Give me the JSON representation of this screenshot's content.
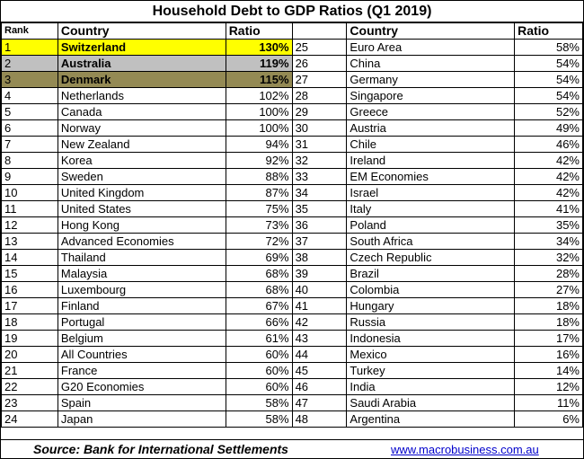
{
  "title": "Household Debt to GDP Ratios (Q1 2019)",
  "headers": {
    "rank": "Rank",
    "country": "Country",
    "ratio": "Ratio"
  },
  "left_rows": [
    {
      "rank": "1",
      "country": "Switzerland",
      "ratio": "130%"
    },
    {
      "rank": "2",
      "country": "Australia",
      "ratio": "119%"
    },
    {
      "rank": "3",
      "country": "Denmark",
      "ratio": "115%"
    },
    {
      "rank": "4",
      "country": "Netherlands",
      "ratio": "102%"
    },
    {
      "rank": "5",
      "country": "Canada",
      "ratio": "100%"
    },
    {
      "rank": "6",
      "country": "Norway",
      "ratio": "100%"
    },
    {
      "rank": "7",
      "country": "New Zealand",
      "ratio": "94%"
    },
    {
      "rank": "8",
      "country": "Korea",
      "ratio": "92%"
    },
    {
      "rank": "9",
      "country": "Sweden",
      "ratio": "88%"
    },
    {
      "rank": "10",
      "country": "United Kingdom",
      "ratio": "87%"
    },
    {
      "rank": "11",
      "country": "United States",
      "ratio": "75%"
    },
    {
      "rank": "12",
      "country": "Hong Kong",
      "ratio": "73%"
    },
    {
      "rank": "13",
      "country": "Advanced Economies",
      "ratio": "72%"
    },
    {
      "rank": "14",
      "country": "Thailand",
      "ratio": "69%"
    },
    {
      "rank": "15",
      "country": "Malaysia",
      "ratio": "68%"
    },
    {
      "rank": "16",
      "country": "Luxembourg",
      "ratio": "68%"
    },
    {
      "rank": "17",
      "country": "Finland",
      "ratio": "67%"
    },
    {
      "rank": "18",
      "country": "Portugal",
      "ratio": "66%"
    },
    {
      "rank": "19",
      "country": "Belgium",
      "ratio": "61%"
    },
    {
      "rank": "20",
      "country": "All Countries",
      "ratio": "60%"
    },
    {
      "rank": "21",
      "country": "France",
      "ratio": "60%"
    },
    {
      "rank": "22",
      "country": "G20 Economies",
      "ratio": "60%"
    },
    {
      "rank": "23",
      "country": "Spain",
      "ratio": "58%"
    },
    {
      "rank": "24",
      "country": "Japan",
      "ratio": "58%"
    }
  ],
  "right_rows": [
    {
      "rank": "25",
      "country": "Euro Area",
      "ratio": "58%"
    },
    {
      "rank": "26",
      "country": "China",
      "ratio": "54%"
    },
    {
      "rank": "27",
      "country": "Germany",
      "ratio": "54%"
    },
    {
      "rank": "28",
      "country": "Singapore",
      "ratio": "54%"
    },
    {
      "rank": "29",
      "country": "Greece",
      "ratio": "52%"
    },
    {
      "rank": "30",
      "country": "Austria",
      "ratio": "49%"
    },
    {
      "rank": "31",
      "country": "Chile",
      "ratio": "46%"
    },
    {
      "rank": "32",
      "country": "Ireland",
      "ratio": "42%"
    },
    {
      "rank": "33",
      "country": "EM Economies",
      "ratio": "42%"
    },
    {
      "rank": "34",
      "country": "Israel",
      "ratio": "42%"
    },
    {
      "rank": "35",
      "country": "Italy",
      "ratio": "41%"
    },
    {
      "rank": "36",
      "country": "Poland",
      "ratio": "35%"
    },
    {
      "rank": "37",
      "country": "South Africa",
      "ratio": "34%"
    },
    {
      "rank": "38",
      "country": "Czech Republic",
      "ratio": "32%"
    },
    {
      "rank": "39",
      "country": "Brazil",
      "ratio": "28%"
    },
    {
      "rank": "40",
      "country": "Colombia",
      "ratio": "27%"
    },
    {
      "rank": "41",
      "country": "Hungary",
      "ratio": "18%"
    },
    {
      "rank": "42",
      "country": "Russia",
      "ratio": "18%"
    },
    {
      "rank": "43",
      "country": "Indonesia",
      "ratio": "17%"
    },
    {
      "rank": "44",
      "country": "Mexico",
      "ratio": "16%"
    },
    {
      "rank": "45",
      "country": "Turkey",
      "ratio": "14%"
    },
    {
      "rank": "46",
      "country": "India",
      "ratio": "12%"
    },
    {
      "rank": "47",
      "country": "Saudi Arabia",
      "ratio": "11%"
    },
    {
      "rank": "48",
      "country": "Argentina",
      "ratio": "6%"
    }
  ],
  "highlight_colors": [
    "#ffff00",
    "#c0c0c0",
    "#948a54"
  ],
  "footer": {
    "source": "Source: Bank for International Settlements",
    "website": "www.macrobusiness.com.au"
  }
}
